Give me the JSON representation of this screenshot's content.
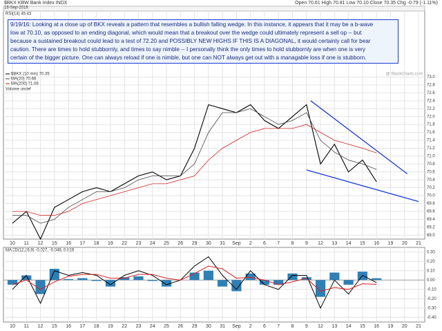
{
  "chart_data": {
    "type": "line",
    "title": "$BKX KBW Bank Index  INDX",
    "watermark": "@ StockCharts.com",
    "date": "16-Sep-2016",
    "quote": "Open 70.61  High 70.81  Low 70.10  Close 70.35  Chg -0.79 (-1.11%)",
    "rsi_label": "RSI(14) 45.43",
    "volume_label": "Volume undef",
    "annotation_lines": [
      "9/19/16:  Looking at a close up of BKX reveals a pattern that resembles a bullish falling wedge.  In this instance, it appears that it may be a b-wave",
      "low at 70.10, as opposed to an ending diagonal, which would mean that a breakout over the wedge could ultimately represent a sell op -- but",
      "because a sustained breakout could lead to a test of 72.20 and POSSIBLY NEW HIGHS IF THIS IS A DIAGONAL, it would certainly call for bear",
      "caution.  There are times to hold stubbornly, and times to say nimble -- I personally think the only times to hold stubbornly are when one is very",
      "certain of the bigger picture.  One can always reload if one is nimble, but one can NOT always get out with a managable loss if one is stubborn."
    ],
    "categories": [
      "10",
      "11",
      "12",
      "15",
      "16",
      "17",
      "18",
      "19",
      "22",
      "23",
      "24",
      "25",
      "26",
      "29",
      "30",
      "31",
      "Sep",
      "2",
      "6",
      "7",
      "8",
      "9",
      "12",
      "13",
      "14",
      "15",
      "16",
      "19",
      "20",
      "21"
    ],
    "series": [
      {
        "name": "$BKX (10 min) 70.35",
        "color": "#000000",
        "values": [
          69.3,
          69.6,
          68.9,
          69.7,
          69.9,
          70.1,
          70.2,
          70.1,
          70.3,
          70.5,
          70.6,
          70.4,
          70.5,
          71.2,
          72.3,
          72.2,
          72.1,
          72.3,
          71.9,
          71.7,
          72.0,
          72.3,
          70.8,
          71.3,
          70.6,
          70.9,
          70.35,
          null,
          null,
          null
        ]
      },
      {
        "name": "MA(20) 70.66",
        "color": "#444444",
        "values": [
          69.5,
          69.5,
          69.3,
          69.4,
          69.7,
          69.9,
          70.1,
          70.1,
          70.2,
          70.4,
          70.5,
          70.5,
          70.5,
          70.8,
          71.6,
          72.1,
          72.1,
          72.2,
          72.0,
          71.8,
          71.9,
          72.1,
          71.4,
          71.1,
          70.9,
          70.8,
          70.66,
          null,
          null,
          null
        ]
      },
      {
        "name": "MA(200) 71.08",
        "color": "#cc2222",
        "values": [
          69.6,
          69.6,
          69.5,
          69.5,
          69.6,
          69.8,
          69.9,
          70.0,
          70.1,
          70.2,
          70.3,
          70.3,
          70.4,
          70.5,
          70.9,
          71.2,
          71.4,
          71.6,
          71.7,
          71.7,
          71.7,
          71.8,
          71.6,
          71.4,
          71.3,
          71.2,
          71.08,
          null,
          null,
          null
        ]
      }
    ],
    "trendlines": [
      {
        "color": "#1a3ad6",
        "x": [
          21.3,
          28.2
        ],
        "y": [
          72.4,
          70.55
        ]
      },
      {
        "color": "#1a3ad6",
        "x": [
          21.0,
          29.0
        ],
        "y": [
          70.65,
          69.85
        ]
      }
    ],
    "ylim": [
      68.9,
      74.67
    ],
    "yticks": [
      {
        "value": 69.0,
        "label": "69.0"
      },
      69.2,
      69.4,
      69.6,
      69.8,
      {
        "value": 70.0,
        "label": "70.0"
      },
      70.2,
      70.4,
      70.6,
      70.8,
      {
        "value": 71.0,
        "label": "71.0"
      },
      71.2,
      71.4,
      71.6,
      71.8,
      {
        "value": 72.0,
        "label": "72.0"
      },
      72.2,
      72.4,
      72.6,
      72.8,
      {
        "value": 73.0,
        "label": "73.0"
      }
    ],
    "grid": true,
    "macd": {
      "label": "MACD(12,26,9) -0.027, -0.046, 0.019",
      "ylim": [
        -0.45,
        0.35
      ],
      "yticks": [
        {
          "value": 0.3,
          "label": "0.30"
        },
        {
          "value": 0.2,
          "label": "0.20"
        },
        {
          "value": 0.1,
          "label": "0.10"
        },
        {
          "value": 0,
          "label": "0.00"
        },
        {
          "value": -0.1,
          "label": "-0.10"
        },
        {
          "value": -0.2,
          "label": "-0.20"
        },
        {
          "value": -0.3,
          "label": "-0.30"
        },
        {
          "value": -0.4,
          "label": "-0.40"
        }
      ],
      "series": [
        {
          "color": "#000000",
          "values": [
            -0.1,
            0.05,
            -0.25,
            0.1,
            0.05,
            0.08,
            0.05,
            -0.05,
            0.05,
            0.1,
            0.05,
            -0.05,
            0.0,
            0.15,
            0.25,
            0.05,
            -0.1,
            0.1,
            -0.05,
            -0.1,
            0.05,
            0.05,
            -0.3,
            0.0,
            -0.15,
            0.05,
            -0.027,
            null,
            null,
            null
          ]
        },
        {
          "color": "#d62020",
          "values": [
            -0.05,
            0.0,
            -0.1,
            -0.02,
            0.04,
            0.06,
            0.06,
            0.02,
            0.02,
            0.06,
            0.06,
            0.02,
            0.0,
            0.07,
            0.15,
            0.12,
            0.02,
            0.03,
            0.0,
            -0.05,
            -0.02,
            0.02,
            -0.12,
            -0.08,
            -0.1,
            -0.04,
            -0.046,
            null,
            null,
            null
          ]
        }
      ],
      "hist": [
        -0.05,
        0.05,
        -0.15,
        0.12,
        0.01,
        0.02,
        -0.01,
        -0.07,
        0.03,
        0.04,
        -0.01,
        -0.07,
        0.0,
        0.08,
        0.1,
        -0.07,
        -0.12,
        0.07,
        -0.05,
        -0.05,
        0.07,
        0.03,
        -0.18,
        0.08,
        -0.05,
        0.09,
        0.019,
        null,
        null,
        null
      ],
      "hist_color": "#2f7fb5"
    }
  }
}
